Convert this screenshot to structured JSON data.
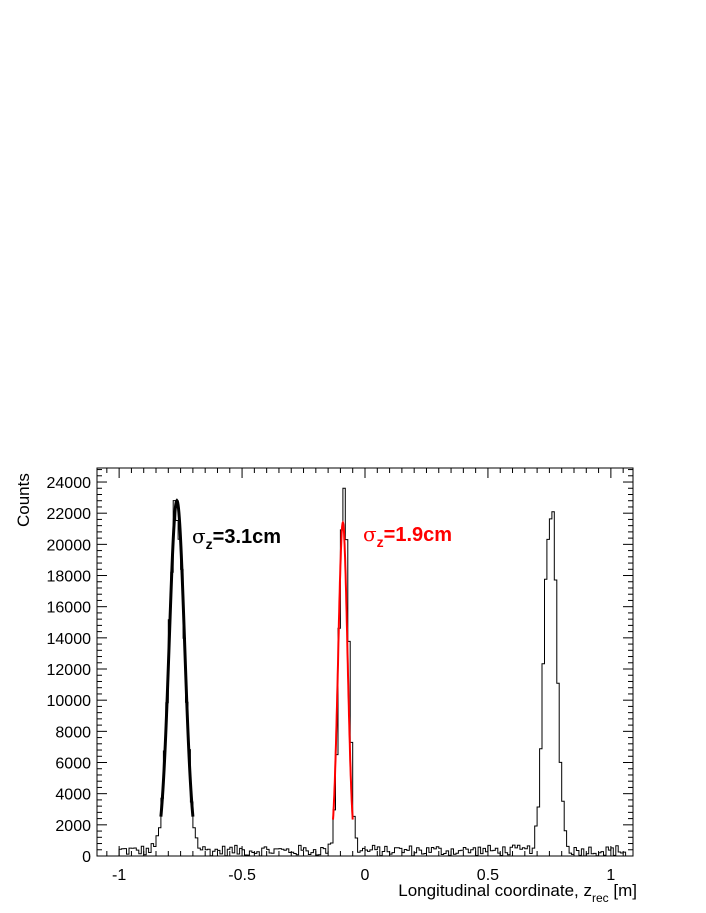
{
  "chart_data": {
    "type": "bar",
    "subtype": "histogram",
    "xlabel": "Longitudinal coordinate, z",
    "xlabel_subscript": "rec",
    "xlabel_unit": " [m]",
    "ylabel": "Counts",
    "xlim": [
      -1.09,
      1.09
    ],
    "ylim": [
      0,
      24900
    ],
    "xticks": [
      -1,
      -0.5,
      0,
      0.5,
      1
    ],
    "xtick_labels": [
      "-1",
      "-0.5",
      "0",
      "0.5",
      "1"
    ],
    "yticks": [
      0,
      2000,
      4000,
      6000,
      8000,
      10000,
      12000,
      14000,
      16000,
      18000,
      20000,
      22000,
      24000
    ],
    "ytick_labels": [
      "0",
      "2000",
      "4000",
      "6000",
      "8000",
      "10000",
      "12000",
      "14000",
      "16000",
      "18000",
      "20000",
      "22000",
      "24000"
    ],
    "grid": false,
    "bin_width": 0.01,
    "bins": [
      {
        "x": -0.78,
        "y": 22500
      },
      {
        "x": -0.77,
        "y": 22800
      },
      {
        "x": -0.76,
        "y": 23000
      }
    ],
    "series": [
      {
        "name": "histogram",
        "color": "#000000",
        "peaks": [
          {
            "center": -0.765,
            "sigma": 0.031,
            "amplitude": 23000
          },
          {
            "center": -0.085,
            "sigma": 0.019,
            "amplitude": 23600
          },
          {
            "center": 0.755,
            "sigma": 0.025,
            "amplitude": 23300
          }
        ]
      },
      {
        "name": "fit",
        "color": "#000000",
        "mean": -0.765,
        "sigma": 0.031,
        "amplitude": 22800,
        "range": [
          -0.83,
          -0.7
        ],
        "line_width": 3
      },
      {
        "name": "fit",
        "color": "#ff0000",
        "mean": -0.09,
        "sigma": 0.019,
        "amplitude": 21400,
        "range": [
          -0.13,
          -0.05
        ],
        "line_width": 2
      }
    ],
    "annotations": [
      {
        "symbol": "σ",
        "subscript": "z",
        "text": "=3.1cm",
        "color": "#000000",
        "x": -0.62,
        "y": 20500
      },
      {
        "symbol": "σ",
        "subscript": "z",
        "text": "=1.9cm",
        "color": "#ff0000",
        "x": 0.0,
        "y": 20500
      }
    ]
  }
}
